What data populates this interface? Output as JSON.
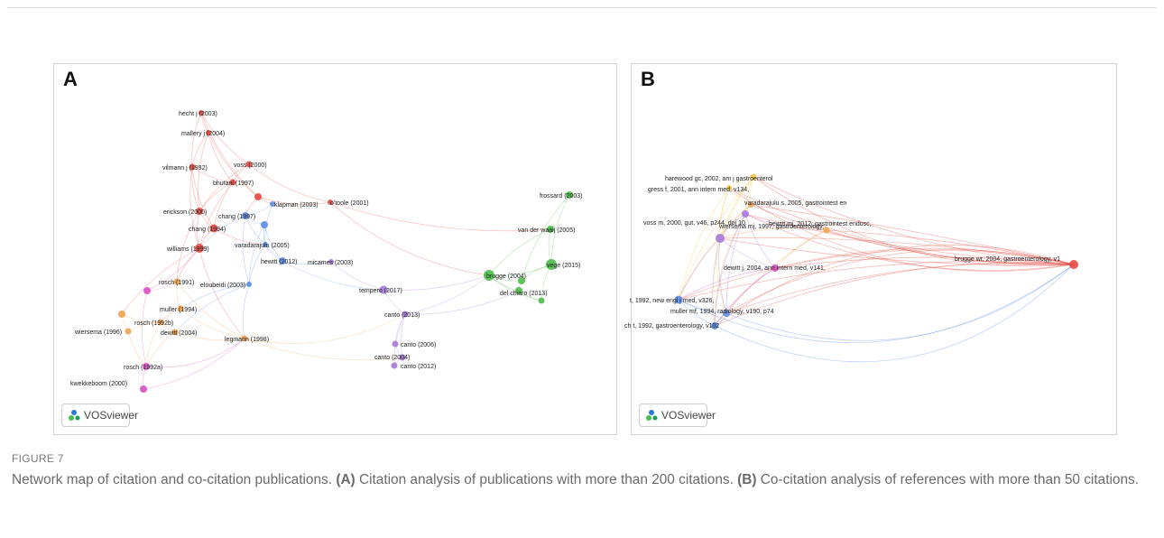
{
  "figure": {
    "label": "FIGURE 7",
    "caption_intro": "Network map of citation and co-citation publications. ",
    "caption_a_marker": "(A)",
    "caption_a_text": " Citation analysis of publications with more than 200 citations. ",
    "caption_b_marker": "(B)",
    "caption_b_text": " Co-citation analysis of references with more than 50 citations."
  },
  "panels": [
    {
      "letter": "A",
      "badge": "VOSviewer",
      "clusters": {
        "red": "#e8493f",
        "blue": "#5a8ce8",
        "green": "#4cbd4a",
        "purple": "#a678dc",
        "orange": "#f2a24e",
        "pink": "#d94fc3"
      },
      "nodes": [
        {
          "label": "hecht j (2003)",
          "cluster": "red"
        },
        {
          "label": "mallery j (2004)",
          "cluster": "red"
        },
        {
          "label": "vilmann j (1992)",
          "cluster": "red"
        },
        {
          "label": "voss (2000)",
          "cluster": "red"
        },
        {
          "label": "bhutani (1997)",
          "cluster": "red"
        },
        {
          "label": "",
          "cluster": "red"
        },
        {
          "label": "erickson (2000)",
          "cluster": "red"
        },
        {
          "label": "chang (1997)",
          "cluster": "blue"
        },
        {
          "label": "chang (1994)",
          "cluster": "red"
        },
        {
          "label": "klapman (2003)",
          "cluster": "blue"
        },
        {
          "label": "o'toole (2001)",
          "cluster": "red"
        },
        {
          "label": "",
          "cluster": "blue"
        },
        {
          "label": "williams (1999)",
          "cluster": "red"
        },
        {
          "label": "varadarajulu (2005)",
          "cluster": "blue"
        },
        {
          "label": "hewitt (2012)",
          "cluster": "blue"
        },
        {
          "label": "micames (2003)",
          "cluster": "purple"
        },
        {
          "label": "rosch (1991)",
          "cluster": "orange"
        },
        {
          "label": "eloubeidi (2003)",
          "cluster": "blue"
        },
        {
          "label": "",
          "cluster": "pink"
        },
        {
          "label": "muller (1994)",
          "cluster": "orange"
        },
        {
          "label": "",
          "cluster": "orange"
        },
        {
          "label": "rosch (1992b)",
          "cluster": "orange"
        },
        {
          "label": "wiersema (1996)",
          "cluster": "orange"
        },
        {
          "label": "dewitt (2004)",
          "cluster": "orange"
        },
        {
          "label": "legmann (1998)",
          "cluster": "orange"
        },
        {
          "label": "rosch (1992a)",
          "cluster": "pink"
        },
        {
          "label": "kwekkeboom (2000)",
          "cluster": "pink"
        },
        {
          "label": "tempero (2017)",
          "cluster": "purple"
        },
        {
          "label": "canto (2013)",
          "cluster": "purple"
        },
        {
          "label": "canto (2006)",
          "cluster": "purple"
        },
        {
          "label": "canto (2004)",
          "cluster": "purple"
        },
        {
          "label": "canto (2012)",
          "cluster": "purple"
        },
        {
          "label": "frossard (2003)",
          "cluster": "green"
        },
        {
          "label": "van der waaij (2005)",
          "cluster": "green"
        },
        {
          "label": "brugge (2004)",
          "cluster": "green"
        },
        {
          "label": "vege (2015)",
          "cluster": "green"
        },
        {
          "label": "",
          "cluster": "green"
        },
        {
          "label": "del chiaro (2013)",
          "cluster": "green"
        },
        {
          "label": "",
          "cluster": "green"
        }
      ]
    },
    {
      "letter": "B",
      "badge": "VOSviewer",
      "clusters": {
        "red": "#e8493f",
        "blue": "#5a8ce8",
        "purple": "#a678dc",
        "yellow": "#f2c84a",
        "orange": "#f2a24e",
        "pink": "#d94fc3"
      },
      "nodes": [
        {
          "label": "harewood gc, 2002, am j gastroenterol",
          "cluster": "yellow"
        },
        {
          "label": "gress f, 2001, ann intern med, v134,",
          "cluster": "yellow"
        },
        {
          "label": "varadarajulu s, 2005, gastrointest en",
          "cluster": "purple"
        },
        {
          "label": "voss m, 2000, gut, v46, p244, doi 10.",
          "cluster": "orange"
        },
        {
          "label": "hewitt mj, 2012, gastrointest endosc,",
          "cluster": "orange"
        },
        {
          "label": "wiersema mj, 1997, gastroenterology,",
          "cluster": "purple"
        },
        {
          "label": "brugge wr, 2004, gastroenterology, v1",
          "cluster": "red"
        },
        {
          "label": "dewitt j, 2004, ann intern med, v141,",
          "cluster": "pink"
        },
        {
          "label": "t, 1992, new engl j med, v326,",
          "cluster": "blue"
        },
        {
          "label": "muller mf, 1994, radiology, v190, p74",
          "cluster": "blue"
        },
        {
          "label": "ch t, 1992, gastroenterology, v102",
          "cluster": "blue"
        }
      ]
    }
  ]
}
